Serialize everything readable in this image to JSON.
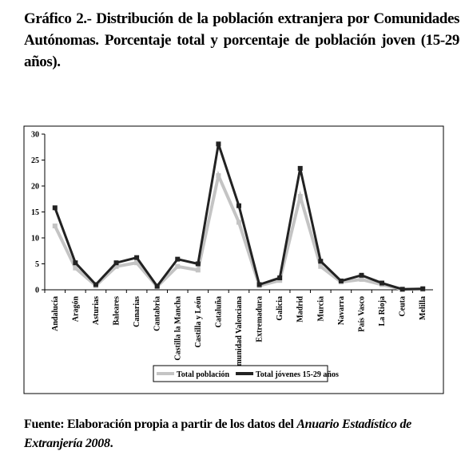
{
  "title": "Gráfico 2.- Distribución de la población extranjera por Comunidades Autónomas. Porcentaje total y porcentaje de población joven (15-29 años).",
  "chart_data": {
    "type": "line",
    "categories": [
      "Andalucía",
      "Aragón",
      "Asturias",
      "Baleares",
      "Canarias",
      "Cantabria",
      "Castilla la Mancha",
      "Castilla y León",
      "Cataluña",
      "Comunidad Valenciana",
      "Extremadura",
      "Galicia",
      "Madrid",
      "Murcia",
      "Navarra",
      "País Vasco",
      "La Rioja",
      "Ceuta",
      "Melilla"
    ],
    "series": [
      {
        "name": "Total población",
        "color": "#c4c4c4",
        "values": [
          12.3,
          4.2,
          0.8,
          4.5,
          5.2,
          0.6,
          4.5,
          3.8,
          22,
          13,
          0.8,
          1.8,
          18,
          4.5,
          1.5,
          2,
          1.0,
          0.1,
          0.1
        ]
      },
      {
        "name": "Total jóvenes 15-29 años",
        "color": "#222222",
        "values": [
          15.8,
          5.2,
          1.0,
          5.2,
          6.2,
          0.7,
          5.9,
          5.0,
          28.1,
          16.2,
          1.0,
          2.3,
          23.4,
          5.5,
          1.7,
          2.8,
          1.3,
          0.1,
          0.2
        ]
      }
    ],
    "ylim": [
      0,
      30
    ],
    "yticks": [
      0,
      5,
      10,
      15,
      20,
      25,
      30
    ],
    "legend": "bottom"
  },
  "source": {
    "prefix": "Fuente: Elaboración propia a partir de los datos del ",
    "title": "Anuario Estadístico de Extranjería 2008",
    "suffix": "."
  }
}
